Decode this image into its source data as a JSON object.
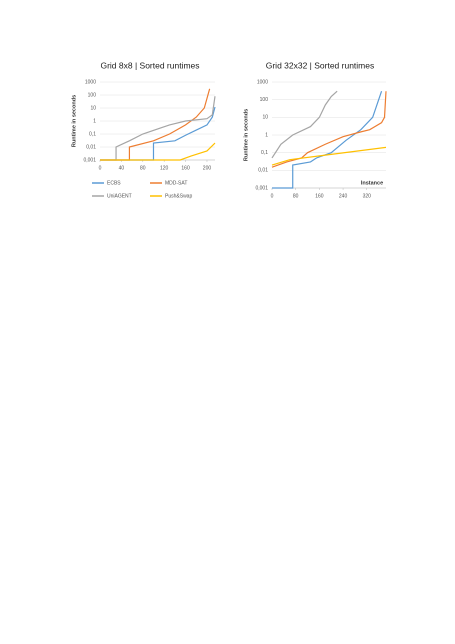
{
  "chart_data": [
    {
      "type": "line",
      "title": "Grid 8x8 | Sorted runtimes",
      "ylabel": "Runtime in seconds",
      "ylog": true,
      "legend": "bottom",
      "xlim": [
        0,
        215
      ],
      "xticks": [
        0,
        40,
        80,
        120,
        160,
        200
      ],
      "ylim": [
        0.001,
        1000
      ],
      "yticks": [
        {
          "value": 1000,
          "label": "1000"
        },
        100,
        10,
        1,
        {
          "value": 0.1,
          "label": "0,1"
        },
        {
          "value": 0.01,
          "label": "0,01"
        },
        {
          "value": 0.001,
          "label": "0,001"
        }
      ],
      "series": [
        {
          "name": "ECBS",
          "color": "#5b9bd5",
          "x": [
            0,
            100,
            100,
            140,
            160,
            180,
            200,
            210,
            215
          ],
          "values": [
            0.001,
            0.001,
            0.02,
            0.03,
            0.08,
            0.2,
            0.5,
            2,
            12
          ]
        },
        {
          "name": "MDD-SAT",
          "color": "#ed7d31",
          "x": [
            0,
            55,
            55,
            100,
            130,
            160,
            180,
            195,
            205
          ],
          "values": [
            0.001,
            0.001,
            0.01,
            0.03,
            0.1,
            0.5,
            2,
            10,
            300
          ]
        },
        {
          "name": "UniAGENT",
          "color": "#a5a5a5",
          "x": [
            0,
            30,
            30,
            55,
            80,
            130,
            160,
            200,
            210,
            215
          ],
          "values": [
            0.001,
            0.001,
            0.01,
            0.03,
            0.1,
            0.5,
            1,
            1.5,
            3,
            80
          ]
        },
        {
          "name": "Push&Swap",
          "color": "#ffc000",
          "x": [
            0,
            150,
            170,
            200,
            215
          ],
          "values": [
            0.001,
            0.001,
            0.002,
            0.005,
            0.02
          ]
        }
      ]
    },
    {
      "type": "line",
      "title": "Grid 32x32 | Sorted runtimes",
      "ylabel": "Runtime in seconds",
      "xlabel": "Instance",
      "ylog": true,
      "xlim": [
        0,
        385
      ],
      "xticks": [
        0,
        80,
        160,
        240,
        320
      ],
      "ylim": [
        0.001,
        1000
      ],
      "yticks": [
        {
          "value": 1000,
          "label": "1000"
        },
        100,
        10,
        1,
        {
          "value": 0.1,
          "label": "0,1"
        },
        {
          "value": 0.01,
          "label": "0,01"
        },
        {
          "value": 0.001,
          "label": "0,001"
        }
      ],
      "series": [
        {
          "color": "#5b9bd5",
          "x": [
            0,
            70,
            70,
            130,
            150,
            200,
            250,
            300,
            340,
            370
          ],
          "values": [
            0.001,
            0.001,
            0.02,
            0.03,
            0.05,
            0.1,
            0.5,
            2,
            10,
            300
          ]
        },
        {
          "color": "#ed7d31",
          "x": [
            0,
            50,
            100,
            120,
            180,
            240,
            300,
            330,
            370,
            380,
            385
          ],
          "values": [
            0.015,
            0.03,
            0.05,
            0.1,
            0.3,
            0.8,
            1.5,
            2,
            5,
            10,
            300
          ]
        },
        {
          "color": "#a5a5a5",
          "x": [
            0,
            30,
            70,
            130,
            160,
            180,
            200,
            220
          ],
          "values": [
            0.05,
            0.3,
            1,
            3,
            10,
            50,
            150,
            300
          ]
        },
        {
          "color": "#ffc000",
          "x": [
            0,
            60,
            200,
            385
          ],
          "values": [
            0.02,
            0.04,
            0.08,
            0.2
          ]
        }
      ]
    }
  ]
}
